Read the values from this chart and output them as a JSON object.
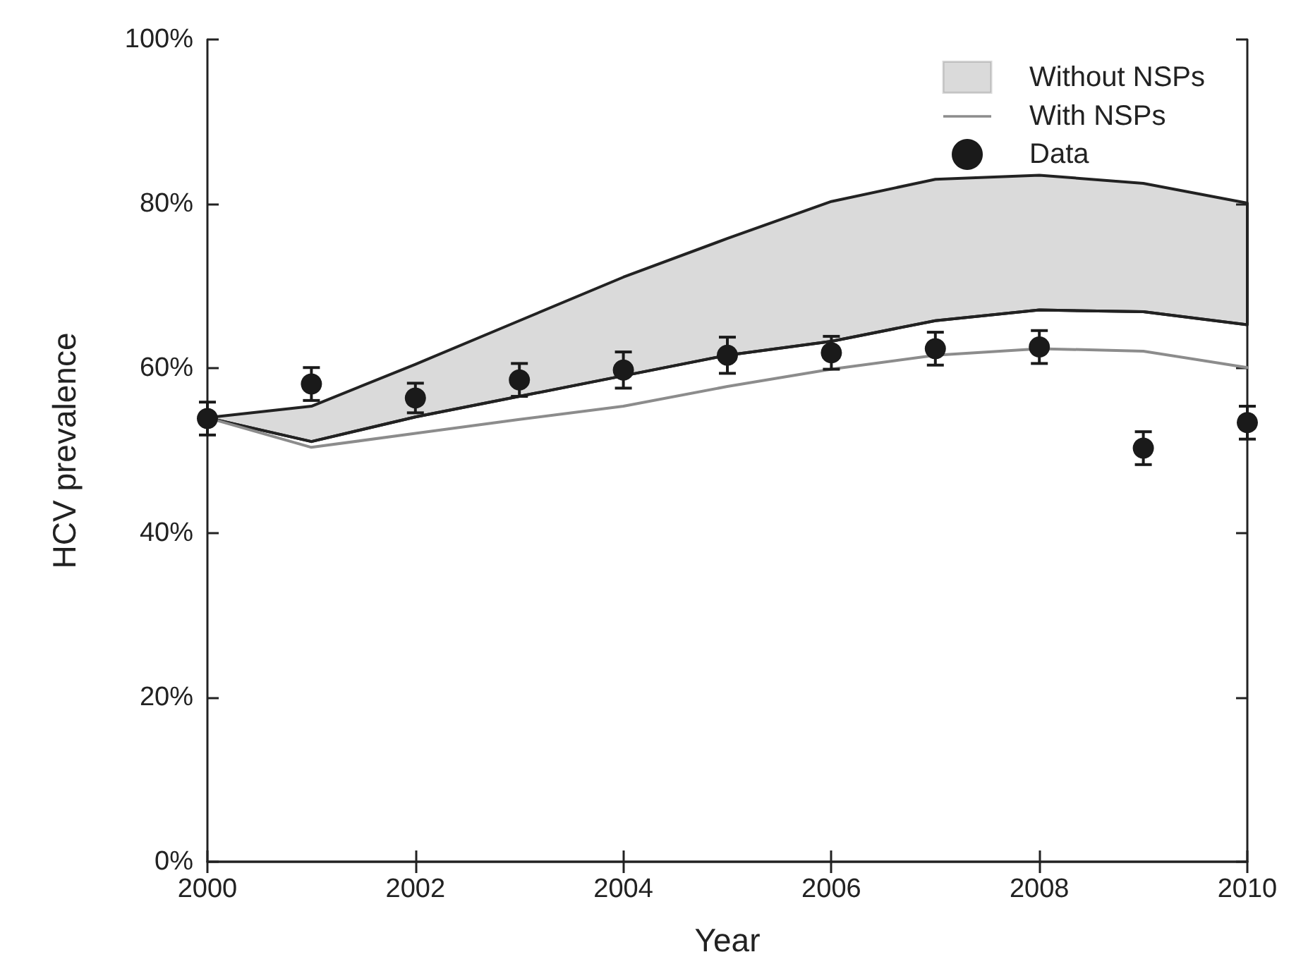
{
  "chart_data": {
    "type": "line",
    "xlabel": "Year",
    "ylabel": "HCV prevalence",
    "x": [
      2000,
      2001,
      2002,
      2003,
      2004,
      2005,
      2006,
      2007,
      2008,
      2009,
      2010
    ],
    "series": [
      {
        "name": "Without NSPs",
        "type": "line",
        "color": "#222222",
        "values": [
          54,
          51.1,
          54.1,
          56.6,
          59.1,
          61.6,
          63.3,
          65.8,
          67.1,
          66.9,
          65.3
        ],
        "lower": [
          54,
          51.1,
          54.1,
          56.6,
          59.1,
          61.6,
          63.3,
          65.8,
          67.1,
          66.9,
          65.3
        ],
        "upper": [
          54,
          55.4,
          60.5,
          65.8,
          71.1,
          75.8,
          80.3,
          83,
          83.5,
          82.5,
          80.1
        ]
      },
      {
        "name": "With NSPs",
        "type": "line",
        "color": "#8c8c8c",
        "marker": "none",
        "values": [
          54,
          50.4,
          52.1,
          53.8,
          55.4,
          57.8,
          59.9,
          61.6,
          62.4,
          62.1,
          60.1
        ]
      },
      {
        "name": "Data",
        "type": "scatter",
        "color": "#1a1a1a",
        "marker": "circle",
        "values": [
          53.9,
          58.1,
          56.4,
          58.6,
          59.8,
          61.6,
          61.9,
          62.4,
          62.6,
          50.3,
          53.4
        ],
        "errors": [
          2,
          2,
          1.8,
          2,
          2.2,
          2.2,
          2,
          2,
          2,
          2,
          2
        ]
      }
    ],
    "xlim": [
      2000,
      2010
    ],
    "xticks": [
      2000,
      2002,
      2004,
      2006,
      2008,
      2010
    ],
    "ylim": [
      0,
      100
    ],
    "yticks": [
      {
        "value": 0,
        "label": "0%"
      },
      {
        "value": 20,
        "label": "20%"
      },
      {
        "value": 40,
        "label": "40%"
      },
      {
        "value": 60,
        "label": "60%"
      },
      {
        "value": 80,
        "label": "80%"
      },
      {
        "value": 100,
        "label": "100%"
      }
    ],
    "grid": false,
    "legend": "top right",
    "line_style": "solid"
  }
}
